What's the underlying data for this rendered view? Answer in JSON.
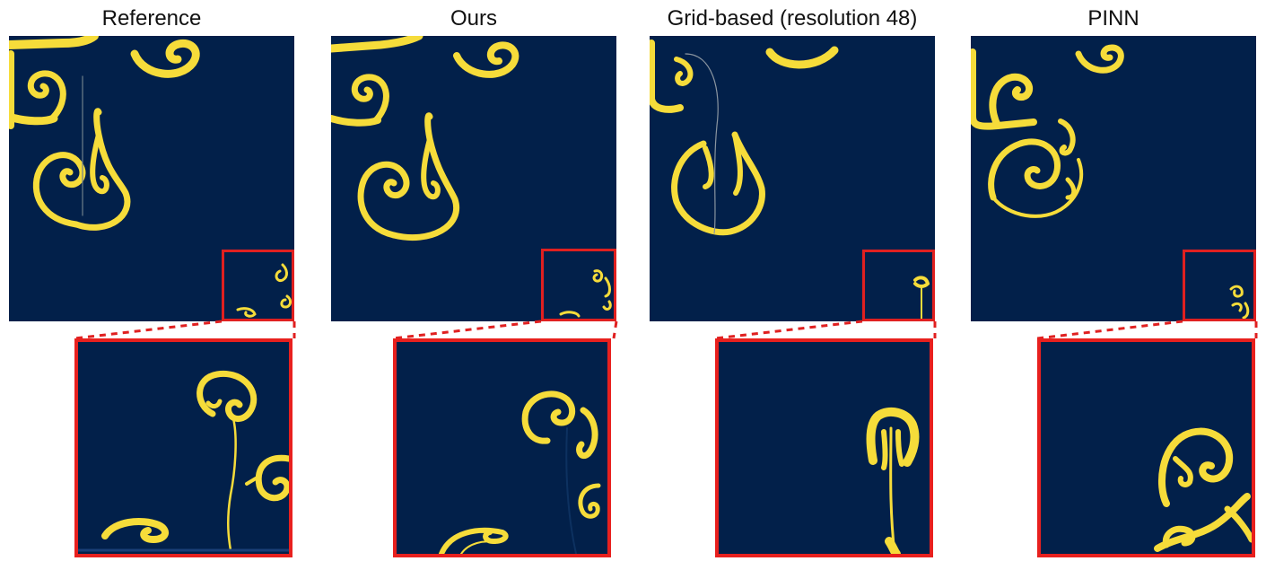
{
  "columns": [
    {
      "id": "reference",
      "title": "Reference"
    },
    {
      "id": "ours",
      "title": "Ours"
    },
    {
      "id": "grid",
      "title": "Grid-based (resolution 48)"
    },
    {
      "id": "pinn",
      "title": "PINN"
    }
  ],
  "colors": {
    "background": "#02204a",
    "fluid": "#f6dc3a",
    "highlight": "#e8201e"
  }
}
